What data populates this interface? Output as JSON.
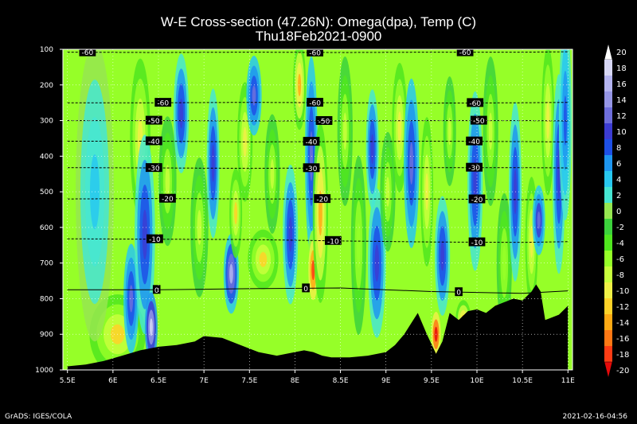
{
  "chart_data": {
    "type": "heatmap",
    "title": "W-E Cross-section (47.26N): Omega(dpa), Temp (C)",
    "subtitle": "Thu18Feb2021-0900",
    "x_ticks": [
      "5.5E",
      "6E",
      "6.5E",
      "7E",
      "7.5E",
      "8E",
      "8.5E",
      "9E",
      "9.5E",
      "10E",
      "10.5E",
      "11E"
    ],
    "x_values": [
      5.5,
      6,
      6.5,
      7,
      7.5,
      8,
      8.5,
      9,
      9.5,
      10,
      10.5,
      11
    ],
    "y_ticks": [
      "100",
      "200",
      "300",
      "400",
      "500",
      "600",
      "700",
      "800",
      "900",
      "1000"
    ],
    "y_values": [
      100,
      200,
      300,
      400,
      500,
      600,
      700,
      800,
      900,
      1000
    ],
    "xlim": [
      5.45,
      11.05
    ],
    "ylim": [
      1000,
      100
    ],
    "colorbar": {
      "labels": [
        "20",
        "18",
        "16",
        "14",
        "12",
        "10",
        "8",
        "6",
        "4",
        "2",
        "0",
        "-2",
        "-4",
        "-6",
        "-8",
        "-10",
        "-12",
        "-14",
        "-16",
        "-18",
        "-20"
      ],
      "colors": [
        "#ffffff",
        "#d7d7f5",
        "#b4b4f0",
        "#9696e6",
        "#6e6edc",
        "#3c3cd2",
        "#1e50e6",
        "#1e96f0",
        "#28c8f0",
        "#46e6d2",
        "#96e650",
        "#3cd23c",
        "#50e61e",
        "#96ff28",
        "#c8ff3c",
        "#f0f046",
        "#ffd228",
        "#ffaa14",
        "#ff7814",
        "#ff3c14",
        "#e60a0a"
      ]
    },
    "temperature_contours": [
      {
        "value": -60,
        "pressures": [
          108,
          109,
          108,
          109,
          108,
          108,
          107
        ],
        "labels": [
          {
            "x": 5.72,
            "text": "-60"
          },
          {
            "x": 8.22,
            "text": "-60"
          },
          {
            "x": 9.87,
            "text": "-60"
          }
        ]
      },
      {
        "value": -60,
        "pressures": [
          250,
          250,
          249,
          250,
          251,
          250,
          249
        ],
        "labels": [
          {
            "x": 6.55,
            "text": "-60"
          },
          {
            "x": 8.22,
            "text": "-60"
          },
          {
            "x": 9.98,
            "text": "-60"
          }
        ]
      },
      {
        "value": -50,
        "pressures": [
          300,
          300,
          301,
          301,
          300,
          300,
          301
        ],
        "labels": [
          {
            "x": 6.45,
            "text": "-50"
          },
          {
            "x": 8.32,
            "text": "-50"
          },
          {
            "x": 10.02,
            "text": "-50"
          }
        ]
      },
      {
        "value": -40,
        "pressures": [
          358,
          358,
          360,
          359,
          358,
          359,
          360
        ],
        "labels": [
          {
            "x": 6.45,
            "text": "-40"
          },
          {
            "x": 8.18,
            "text": "-40"
          },
          {
            "x": 9.97,
            "text": "-40"
          }
        ]
      },
      {
        "value": -30,
        "pressures": [
          432,
          433,
          434,
          433,
          432,
          432,
          433
        ],
        "labels": [
          {
            "x": 6.45,
            "text": "-30"
          },
          {
            "x": 8.18,
            "text": "-30"
          },
          {
            "x": 9.97,
            "text": "-30"
          }
        ]
      },
      {
        "value": -20,
        "pressures": [
          520,
          519,
          520,
          520,
          520,
          522,
          522
        ],
        "labels": [
          {
            "x": 6.6,
            "text": "-20"
          },
          {
            "x": 8.3,
            "text": "-20"
          },
          {
            "x": 10.0,
            "text": "-20"
          }
        ]
      },
      {
        "value": -10,
        "pressures": [
          632,
          633,
          634,
          638,
          641,
          642,
          640
        ],
        "labels": [
          {
            "x": 6.46,
            "text": "-10"
          },
          {
            "x": 8.42,
            "text": "-10"
          },
          {
            "x": 10.0,
            "text": "-10"
          }
        ]
      },
      {
        "value": 0,
        "pressures": [
          775,
          775,
          772,
          770,
          780,
          785,
          778
        ],
        "labels": [
          {
            "x": 6.48,
            "text": "0"
          },
          {
            "x": 8.12,
            "text": "0"
          },
          {
            "x": 9.8,
            "text": "0"
          }
        ]
      }
    ],
    "contour_x": [
      5.5,
      6.5,
      7.5,
      8.5,
      9.5,
      10.5,
      11.0
    ],
    "terrain_x": [
      5.5,
      5.7,
      5.9,
      6.1,
      6.3,
      6.5,
      6.7,
      6.9,
      7.0,
      7.2,
      7.4,
      7.6,
      7.8,
      8.0,
      8.1,
      8.2,
      8.3,
      8.4,
      8.6,
      8.8,
      9.0,
      9.1,
      9.2,
      9.3,
      9.35,
      9.45,
      9.55,
      9.62,
      9.7,
      9.8,
      9.9,
      10.0,
      10.1,
      10.2,
      10.3,
      10.4,
      10.5,
      10.6,
      10.65,
      10.7,
      10.75,
      10.8,
      10.9,
      11.0
    ],
    "terrain_p": [
      990,
      985,
      975,
      960,
      945,
      935,
      930,
      920,
      905,
      910,
      930,
      950,
      960,
      950,
      945,
      950,
      960,
      965,
      965,
      960,
      950,
      930,
      900,
      860,
      840,
      900,
      955,
      920,
      840,
      860,
      835,
      830,
      840,
      820,
      810,
      800,
      805,
      780,
      760,
      780,
      860,
      855,
      845,
      820
    ]
  },
  "footer": {
    "left": "GrADS: IGES/COLA",
    "right": "2021-02-16-04:56"
  }
}
